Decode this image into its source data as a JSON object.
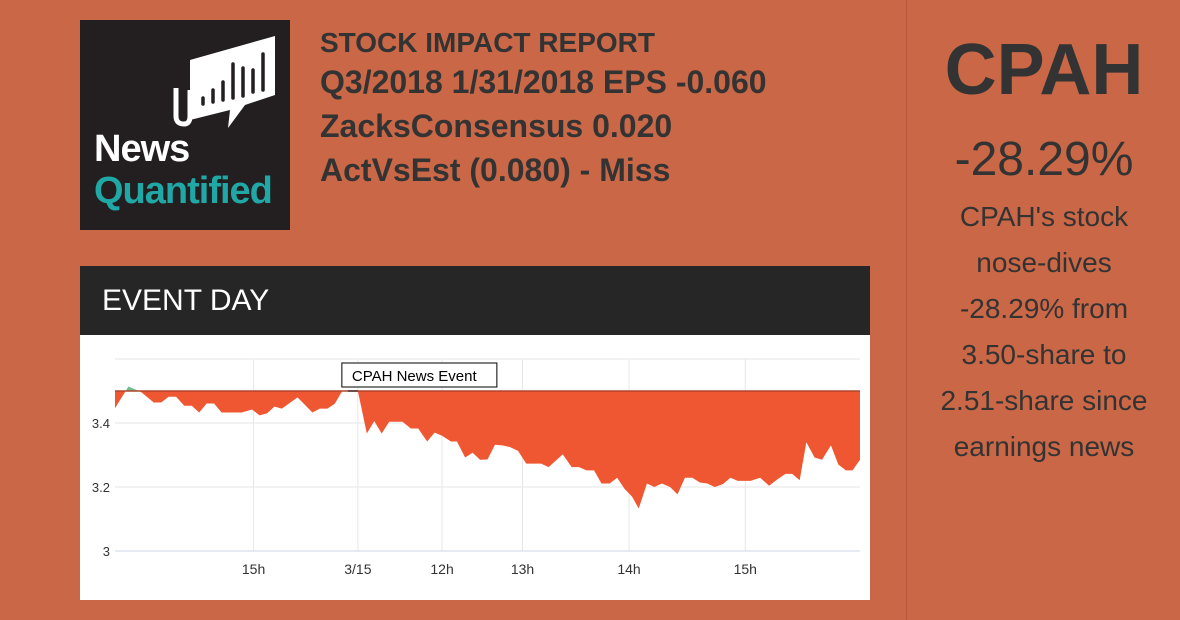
{
  "logo": {
    "line1": "News",
    "line2": "Quantified"
  },
  "report": {
    "title": "STOCK IMPACT REPORT",
    "line1": "Q3/2018 1/31/2018 EPS -0.060",
    "line2": "ZacksConsensus 0.020",
    "line3": "ActVsEst (0.080) - Miss"
  },
  "summary": {
    "ticker": "CPAH",
    "change": "-28.29%",
    "desc": [
      "CPAH's stock",
      "nose-dives",
      "-28.29% from",
      "3.50-share to",
      "2.51-share since",
      "earnings news"
    ]
  },
  "panel": {
    "title": "EVENT DAY"
  },
  "colors": {
    "below": "#ee5731",
    "above": "#6dbf8e",
    "baseline": "#b0452c"
  },
  "chart_data": {
    "type": "area",
    "title": "EVENT DAY",
    "annotation": "CPAH News Event",
    "annotation_x": 32.6,
    "baseline": 3.5,
    "ylim": [
      3.0,
      3.6
    ],
    "yticks": [
      3,
      3.2,
      3.4
    ],
    "ytick_labels": [
      "3",
      "3.2",
      "3.4"
    ],
    "xlim": [
      0,
      100
    ],
    "xticks": [
      {
        "x": 18.6,
        "label": "15h"
      },
      {
        "x": 32.6,
        "label": "3/15"
      },
      {
        "x": 43.9,
        "label": "12h"
      },
      {
        "x": 54.7,
        "label": "13h"
      },
      {
        "x": 69,
        "label": "14h"
      },
      {
        "x": 84.6,
        "label": "15h"
      }
    ],
    "points": [
      [
        0,
        3.446
      ],
      [
        1.8,
        3.514
      ],
      [
        3.5,
        3.497
      ],
      [
        5.2,
        3.464
      ],
      [
        6.2,
        3.464
      ],
      [
        7.2,
        3.482
      ],
      [
        8.2,
        3.482
      ],
      [
        9.3,
        3.454
      ],
      [
        10.3,
        3.454
      ],
      [
        11.3,
        3.433
      ],
      [
        12.3,
        3.461
      ],
      [
        13.3,
        3.461
      ],
      [
        14.3,
        3.433
      ],
      [
        17,
        3.433
      ],
      [
        18.4,
        3.442
      ],
      [
        19.4,
        3.424
      ],
      [
        20.4,
        3.43
      ],
      [
        21.4,
        3.451
      ],
      [
        22.4,
        3.445
      ],
      [
        24.5,
        3.48
      ],
      [
        26.5,
        3.433
      ],
      [
        27.5,
        3.445
      ],
      [
        28.5,
        3.445
      ],
      [
        29.5,
        3.46
      ],
      [
        30.5,
        3.5
      ],
      [
        32.6,
        3.5
      ],
      [
        33.8,
        3.367
      ],
      [
        34.8,
        3.406
      ],
      [
        35.8,
        3.367
      ],
      [
        36.8,
        3.404
      ],
      [
        38.6,
        3.404
      ],
      [
        39.7,
        3.383
      ],
      [
        40.7,
        3.383
      ],
      [
        41.9,
        3.342
      ],
      [
        42.9,
        3.37
      ],
      [
        43.9,
        3.36
      ],
      [
        45.1,
        3.342
      ],
      [
        45.9,
        3.342
      ],
      [
        47,
        3.292
      ],
      [
        48,
        3.307
      ],
      [
        49,
        3.285
      ],
      [
        50,
        3.286
      ],
      [
        51,
        3.332
      ],
      [
        52,
        3.33
      ],
      [
        53,
        3.325
      ],
      [
        54.1,
        3.313
      ],
      [
        55.2,
        3.273
      ],
      [
        57.2,
        3.273
      ],
      [
        58.2,
        3.262
      ],
      [
        60.1,
        3.302
      ],
      [
        61.3,
        3.262
      ],
      [
        62.3,
        3.262
      ],
      [
        63.3,
        3.252
      ],
      [
        64.3,
        3.252
      ],
      [
        65.3,
        3.211
      ],
      [
        66.4,
        3.211
      ],
      [
        67.4,
        3.229
      ],
      [
        68.4,
        3.194
      ],
      [
        69.4,
        3.17
      ],
      [
        70.3,
        3.133
      ],
      [
        71.4,
        3.211
      ],
      [
        72.4,
        3.2
      ],
      [
        73.4,
        3.211
      ],
      [
        74.5,
        3.2
      ],
      [
        75.5,
        3.177
      ],
      [
        76.5,
        3.229
      ],
      [
        77.5,
        3.229
      ],
      [
        78.5,
        3.214
      ],
      [
        79.5,
        3.211
      ],
      [
        80.5,
        3.2
      ],
      [
        81.6,
        3.209
      ],
      [
        82.6,
        3.229
      ],
      [
        83.6,
        3.219
      ],
      [
        85.3,
        3.219
      ],
      [
        86.6,
        3.229
      ],
      [
        87.8,
        3.204
      ],
      [
        88.9,
        3.224
      ],
      [
        90,
        3.241
      ],
      [
        90.9,
        3.241
      ],
      [
        91.9,
        3.221
      ],
      [
        92.8,
        3.34
      ],
      [
        93.9,
        3.292
      ],
      [
        94.9,
        3.285
      ],
      [
        96.1,
        3.33
      ],
      [
        97.1,
        3.27
      ],
      [
        98.1,
        3.252
      ],
      [
        99,
        3.252
      ],
      [
        100,
        3.285
      ]
    ]
  }
}
